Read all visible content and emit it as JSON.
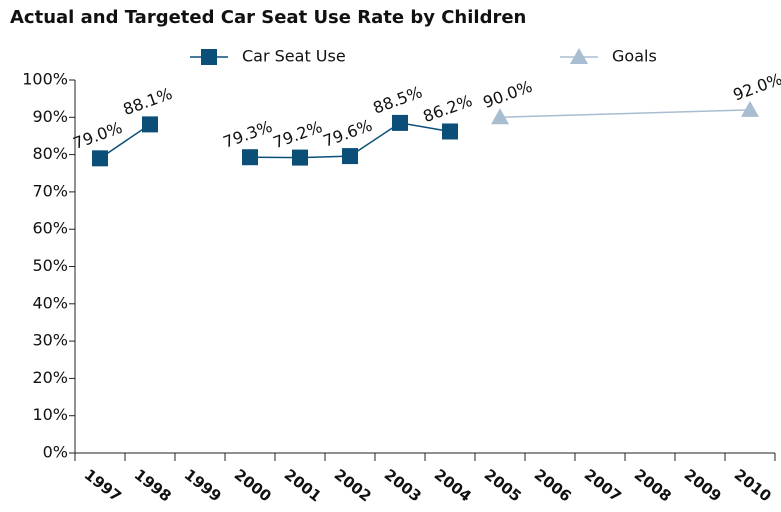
{
  "chart_data": {
    "type": "line",
    "title": "Actual and Targeted Car Seat Use Rate by Children",
    "x": [
      1997,
      1998,
      1999,
      2000,
      2001,
      2002,
      2003,
      2004,
      2005,
      2006,
      2007,
      2008,
      2009,
      2010
    ],
    "xlim": [
      1996.5,
      2010.5
    ],
    "ylim": [
      0,
      100
    ],
    "yticks": [
      {
        "value": 0,
        "label": "0%"
      },
      {
        "value": 10,
        "label": "10%"
      },
      {
        "value": 20,
        "label": "20%"
      },
      {
        "value": 30,
        "label": "30%"
      },
      {
        "value": 40,
        "label": "40%"
      },
      {
        "value": 50,
        "label": "50%"
      },
      {
        "value": 60,
        "label": "60%"
      },
      {
        "value": 70,
        "label": "70%"
      },
      {
        "value": 80,
        "label": "80%"
      },
      {
        "value": 90,
        "label": "90%"
      },
      {
        "value": 100,
        "label": "100%"
      }
    ],
    "series": [
      {
        "name": "Car Seat Use",
        "color": "#0b4f79",
        "marker": "square",
        "x": [
          1997,
          1998,
          1999,
          2000,
          2001,
          2002,
          2003,
          2004
        ],
        "values": [
          79.0,
          88.1,
          null,
          79.3,
          79.2,
          79.6,
          88.5,
          86.2
        ],
        "value_labels": [
          "79.0%",
          "88.1%",
          null,
          "79.3%",
          "79.2%",
          "79.6%",
          "88.5%",
          "86.2%"
        ]
      },
      {
        "name": "Goals",
        "color": "#a9bdd0",
        "marker": "triangle",
        "x": [
          2005,
          2010
        ],
        "values": [
          90.0,
          92.0
        ],
        "value_labels": [
          "90.0%",
          "92.0%"
        ]
      }
    ]
  }
}
